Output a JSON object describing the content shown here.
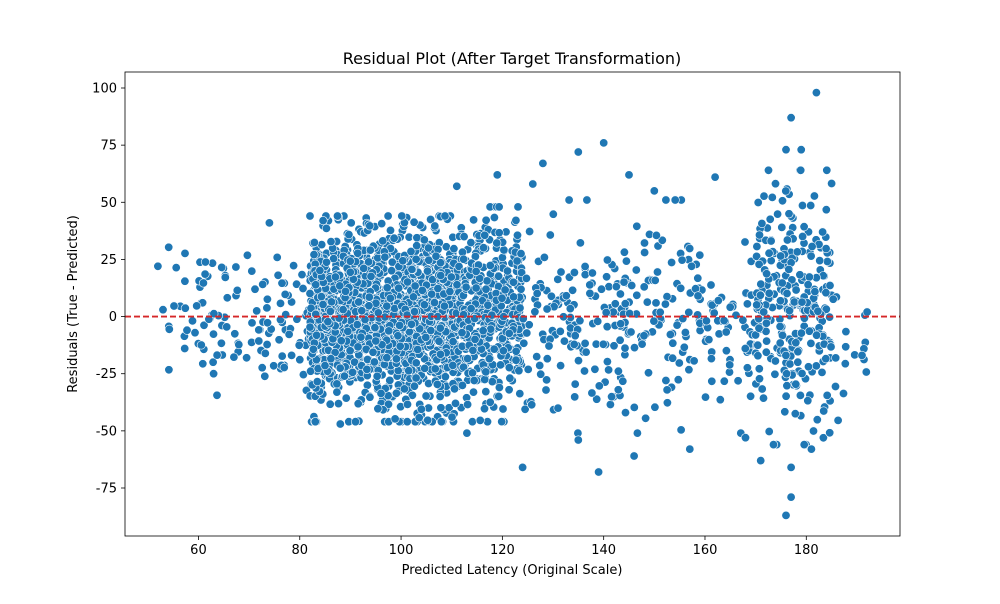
{
  "chart_data": {
    "type": "scatter",
    "title": "Residual Plot (After Target Transformation)",
    "xlabel": "Predicted Latency (Original Scale)",
    "ylabel": "Residuals (True - Predicted)",
    "xlim": [
      45.5,
      198.5
    ],
    "ylim": [
      -96,
      107
    ],
    "x_ticks": [
      60,
      80,
      100,
      120,
      140,
      160,
      180
    ],
    "y_ticks": [
      -75,
      -50,
      -25,
      0,
      25,
      50,
      75,
      100
    ],
    "grid": false,
    "reference_line": {
      "y": 0,
      "style": "dashed",
      "color": "#d62728"
    },
    "marker_color": "#1f77b4",
    "outliers": [
      {
        "x": 182,
        "y": 98
      },
      {
        "x": 177,
        "y": 87
      },
      {
        "x": 140,
        "y": 76
      },
      {
        "x": 135,
        "y": 72
      },
      {
        "x": 176,
        "y": 73
      },
      {
        "x": 179,
        "y": 73
      },
      {
        "x": 128,
        "y": 67
      },
      {
        "x": 145,
        "y": 62
      },
      {
        "x": 119,
        "y": 62
      },
      {
        "x": 162,
        "y": 61
      },
      {
        "x": 111,
        "y": 57
      },
      {
        "x": 126,
        "y": 58
      },
      {
        "x": 150,
        "y": 55
      },
      {
        "x": 74,
        "y": 41
      },
      {
        "x": 52,
        "y": 22
      },
      {
        "x": 53,
        "y": 3
      },
      {
        "x": 192,
        "y": 2
      },
      {
        "x": 191,
        "y": -17
      },
      {
        "x": 63,
        "y": -25
      },
      {
        "x": 113,
        "y": -51
      },
      {
        "x": 124,
        "y": -66
      },
      {
        "x": 139,
        "y": -68
      },
      {
        "x": 146,
        "y": -61
      },
      {
        "x": 171,
        "y": -63
      },
      {
        "x": 177,
        "y": -66
      },
      {
        "x": 177,
        "y": -79
      },
      {
        "x": 176,
        "y": -87
      },
      {
        "x": 135,
        "y": -54
      },
      {
        "x": 157,
        "y": -58
      },
      {
        "x": 168,
        "y": -53
      },
      {
        "x": 88,
        "y": -47
      },
      {
        "x": 91,
        "y": -46
      },
      {
        "x": 181,
        "y": -58
      }
    ],
    "point_distribution": {
      "description_of_density": "clustered",
      "bands": [
        {
          "x_range": [
            54,
            82
          ],
          "y_range": [
            -30,
            30
          ],
          "count": 120
        },
        {
          "x_range": [
            82,
            112
          ],
          "y_range": [
            -40,
            38
          ],
          "count": 1700
        },
        {
          "x_range": [
            112,
            124
          ],
          "y_range": [
            -40,
            42
          ],
          "count": 450
        },
        {
          "x_range": [
            124,
            170
          ],
          "y_range": [
            -45,
            45
          ],
          "count": 300
        },
        {
          "x_range": [
            170,
            185
          ],
          "y_range": [
            -50,
            58
          ],
          "count": 280
        },
        {
          "x_range": [
            185,
            192
          ],
          "y_range": [
            -40,
            15
          ],
          "count": 15
        }
      ]
    }
  }
}
